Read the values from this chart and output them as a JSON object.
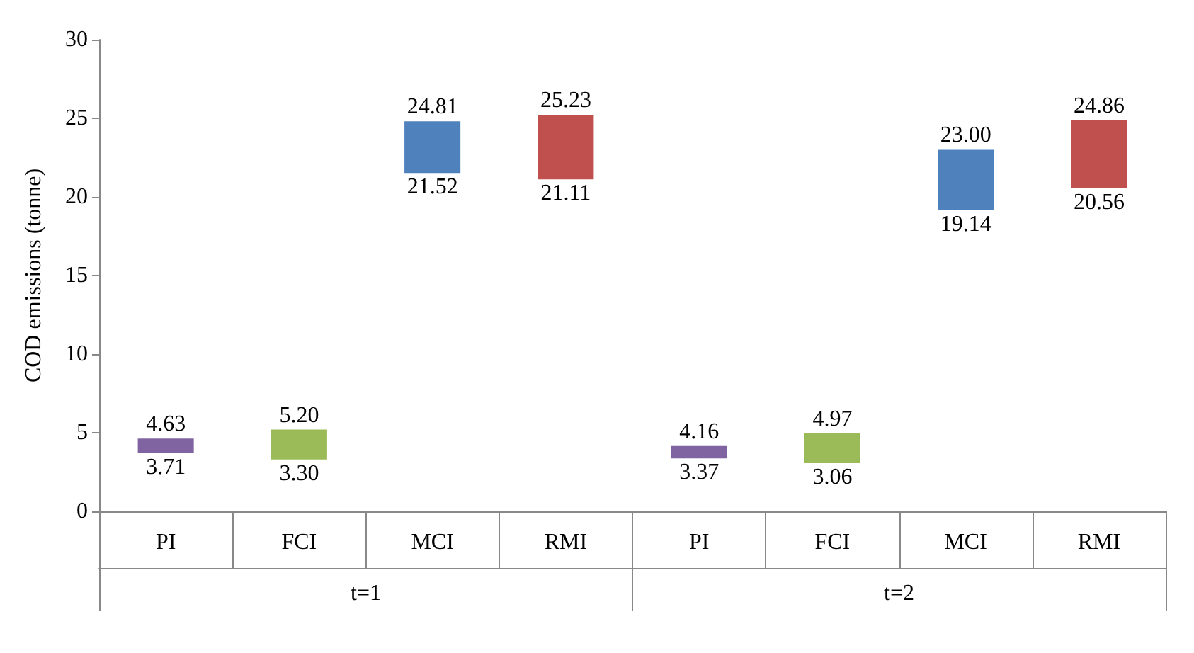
{
  "chart_data": {
    "type": "bar",
    "ylabel": "COD emissions (tonne)",
    "categories": [
      "PI",
      "FCI",
      "MCI",
      "RMI",
      "PI",
      "FCI",
      "MCI",
      "RMI"
    ],
    "base": [
      3.71,
      3.3,
      21.52,
      21.11,
      3.37,
      3.06,
      19.14,
      20.56
    ],
    "values": [
      0.92,
      1.9,
      3.29,
      4.12,
      0.79,
      1.91,
      3.86,
      4.3
    ],
    "colors": [
      "#8064a2",
      "#9bbb59",
      "#4f81bd",
      "#c0504d",
      "#8064a2",
      "#9bbb59",
      "#4f81bd",
      "#c0504d"
    ],
    "value_labels": [
      [
        "4.63",
        "3.71"
      ],
      [
        "5.20",
        "3.30"
      ],
      [
        "24.81",
        "21.52"
      ],
      [
        "25.23",
        "21.11"
      ],
      [
        "4.16",
        "3.37"
      ],
      [
        "4.97",
        "3.06"
      ],
      [
        "23.00",
        "19.14"
      ],
      [
        "24.86",
        "20.56"
      ]
    ],
    "annotations": [
      "t=1",
      "t=2"
    ],
    "ylim": [
      0,
      30
    ],
    "yticks": [
      0,
      5,
      10,
      15,
      20,
      25,
      30
    ],
    "grid": false
  }
}
